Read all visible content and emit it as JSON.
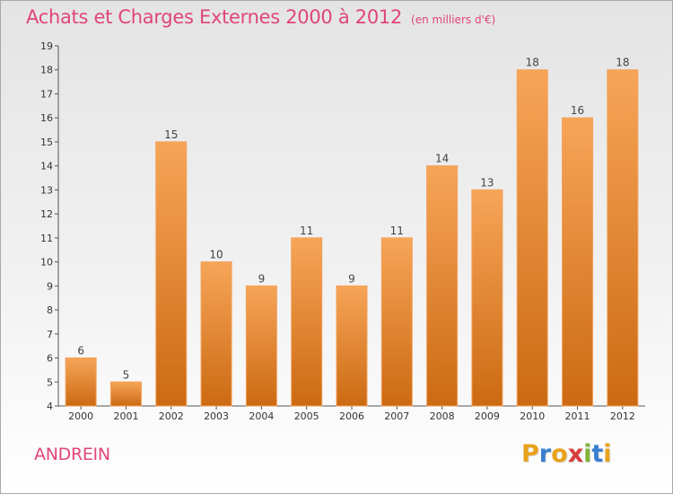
{
  "chart_data": {
    "type": "bar",
    "title": "Achats et Charges Externes 2000 à 2012",
    "subtitle": "(en milliers d'€)",
    "categories": [
      "2000",
      "2001",
      "2002",
      "2003",
      "2004",
      "2005",
      "2006",
      "2007",
      "2008",
      "2009",
      "2010",
      "2011",
      "2012"
    ],
    "values": [
      6,
      5,
      15,
      10,
      9,
      11,
      9,
      11,
      14,
      13,
      18,
      16,
      18
    ],
    "ylim": [
      4,
      19
    ],
    "yticks": [
      4,
      5,
      6,
      7,
      8,
      9,
      10,
      11,
      12,
      13,
      14,
      15,
      16,
      17,
      18,
      19
    ],
    "grid": false,
    "bar_color": "#f18a2a",
    "data_labels": true
  },
  "place": "ANDREIN",
  "logo": {
    "letters": [
      "P",
      "r",
      "o",
      "x",
      "i",
      "t",
      "i"
    ],
    "colors": [
      "#e8a21a",
      "#3a7fd0",
      "#e8a21a",
      "#d93c3c",
      "#7fb43a",
      "#3a7fd0",
      "#e8a21a"
    ]
  },
  "colors": {
    "title": "#e0457a",
    "axis": "#555555"
  }
}
